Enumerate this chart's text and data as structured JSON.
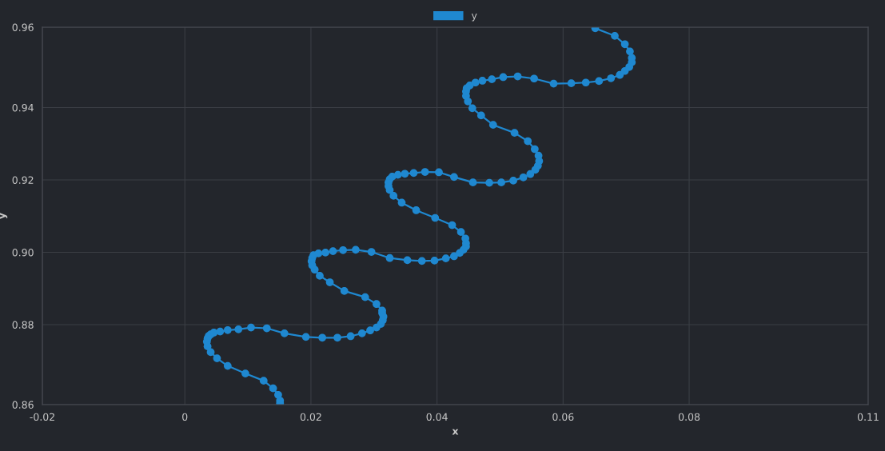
{
  "chart_data": {
    "type": "line",
    "xlabel": "x",
    "ylabel": "y",
    "xlim": [
      -0.0226,
      0.1084
    ],
    "ylim": [
      0.8579,
      0.9622
    ],
    "xticks": [
      {
        "value": -0.0226,
        "label": "-0.02"
      },
      {
        "value": 0,
        "label": "0"
      },
      0.02,
      0.04,
      0.06,
      0.08,
      {
        "value": 0.1084,
        "label": "0.11"
      }
    ],
    "yticks": [
      {
        "value": 0.8579,
        "label": "0.86"
      },
      0.88,
      {
        "value": 0.9,
        "label": "0.90"
      },
      0.92,
      0.94,
      {
        "value": 0.9622,
        "label": "0.96"
      }
    ],
    "grid": true,
    "legend": "top",
    "marker": "circle",
    "line_style": "solid",
    "series": [
      {
        "name": "y",
        "color": "#1f88d0",
        "x": [
          0.0151,
          0.0151,
          0.0148,
          0.014,
          0.0125,
          0.0096,
          0.0068,
          0.0051,
          0.0041,
          0.0036,
          0.0035,
          0.0036,
          0.0038,
          0.0041,
          0.0046,
          0.0056,
          0.0068,
          0.0085,
          0.0105,
          0.013,
          0.0158,
          0.0192,
          0.0218,
          0.0242,
          0.0263,
          0.0281,
          0.0294,
          0.0304,
          0.0311,
          0.0314,
          0.0315,
          0.0313,
          0.0313,
          0.0304,
          0.0286,
          0.0253,
          0.023,
          0.0214,
          0.0206,
          0.0202,
          0.0201,
          0.0202,
          0.0204,
          0.0212,
          0.0223,
          0.0235,
          0.0251,
          0.0271,
          0.0296,
          0.0325,
          0.0353,
          0.0376,
          0.0396,
          0.0414,
          0.0427,
          0.0436,
          0.0442,
          0.0446,
          0.0446,
          0.0445,
          0.0438,
          0.0424,
          0.0397,
          0.0367,
          0.0344,
          0.0331,
          0.0325,
          0.0323,
          0.0323,
          0.0325,
          0.0329,
          0.0338,
          0.0349,
          0.0363,
          0.0381,
          0.0403,
          0.0427,
          0.0457,
          0.0483,
          0.0502,
          0.0521,
          0.0537,
          0.0548,
          0.0556,
          0.056,
          0.0562,
          0.0561,
          0.0555,
          0.0544,
          0.0523,
          0.0489,
          0.047,
          0.0456,
          0.0449,
          0.0446,
          0.0446,
          0.0447,
          0.0452,
          0.0461,
          0.0472,
          0.0487,
          0.0505,
          0.0528,
          0.0554,
          0.0585,
          0.0613,
          0.0636,
          0.0657,
          0.0676,
          0.069,
          0.0698,
          0.0705,
          0.0709,
          0.0709,
          0.0706,
          0.0698,
          0.0682,
          0.0651
        ],
        "values": [
          0.8583,
          0.859,
          0.8606,
          0.8624,
          0.8645,
          0.8665,
          0.8686,
          0.8707,
          0.8724,
          0.874,
          0.8753,
          0.8762,
          0.8769,
          0.8773,
          0.8778,
          0.8781,
          0.8785,
          0.8787,
          0.8792,
          0.879,
          0.8776,
          0.8766,
          0.8764,
          0.8764,
          0.8768,
          0.8776,
          0.8784,
          0.8792,
          0.8802,
          0.8812,
          0.8822,
          0.8832,
          0.8839,
          0.8857,
          0.8876,
          0.8893,
          0.8917,
          0.8935,
          0.8952,
          0.8964,
          0.8975,
          0.8984,
          0.8992,
          0.8997,
          0.8999,
          0.9003,
          0.9006,
          0.9007,
          0.9001,
          0.8984,
          0.8978,
          0.8976,
          0.8977,
          0.8983,
          0.8989,
          0.8998,
          0.9007,
          0.9016,
          0.9025,
          0.9038,
          0.9056,
          0.9075,
          0.9095,
          0.9116,
          0.9137,
          0.9156,
          0.9172,
          0.9183,
          0.9193,
          0.9202,
          0.9209,
          0.9214,
          0.9217,
          0.9219,
          0.9222,
          0.9221,
          0.9208,
          0.9193,
          0.9192,
          0.9193,
          0.9198,
          0.9207,
          0.9216,
          0.9228,
          0.9239,
          0.9252,
          0.9267,
          0.9285,
          0.9307,
          0.933,
          0.9352,
          0.9378,
          0.9398,
          0.9417,
          0.9432,
          0.9444,
          0.9453,
          0.9461,
          0.9469,
          0.9474,
          0.9478,
          0.9484,
          0.9486,
          0.948,
          0.9466,
          0.9467,
          0.9469,
          0.9473,
          0.9481,
          0.949,
          0.9501,
          0.9512,
          0.9525,
          0.9537,
          0.9555,
          0.9575,
          0.9598,
          0.9619
        ]
      }
    ]
  }
}
